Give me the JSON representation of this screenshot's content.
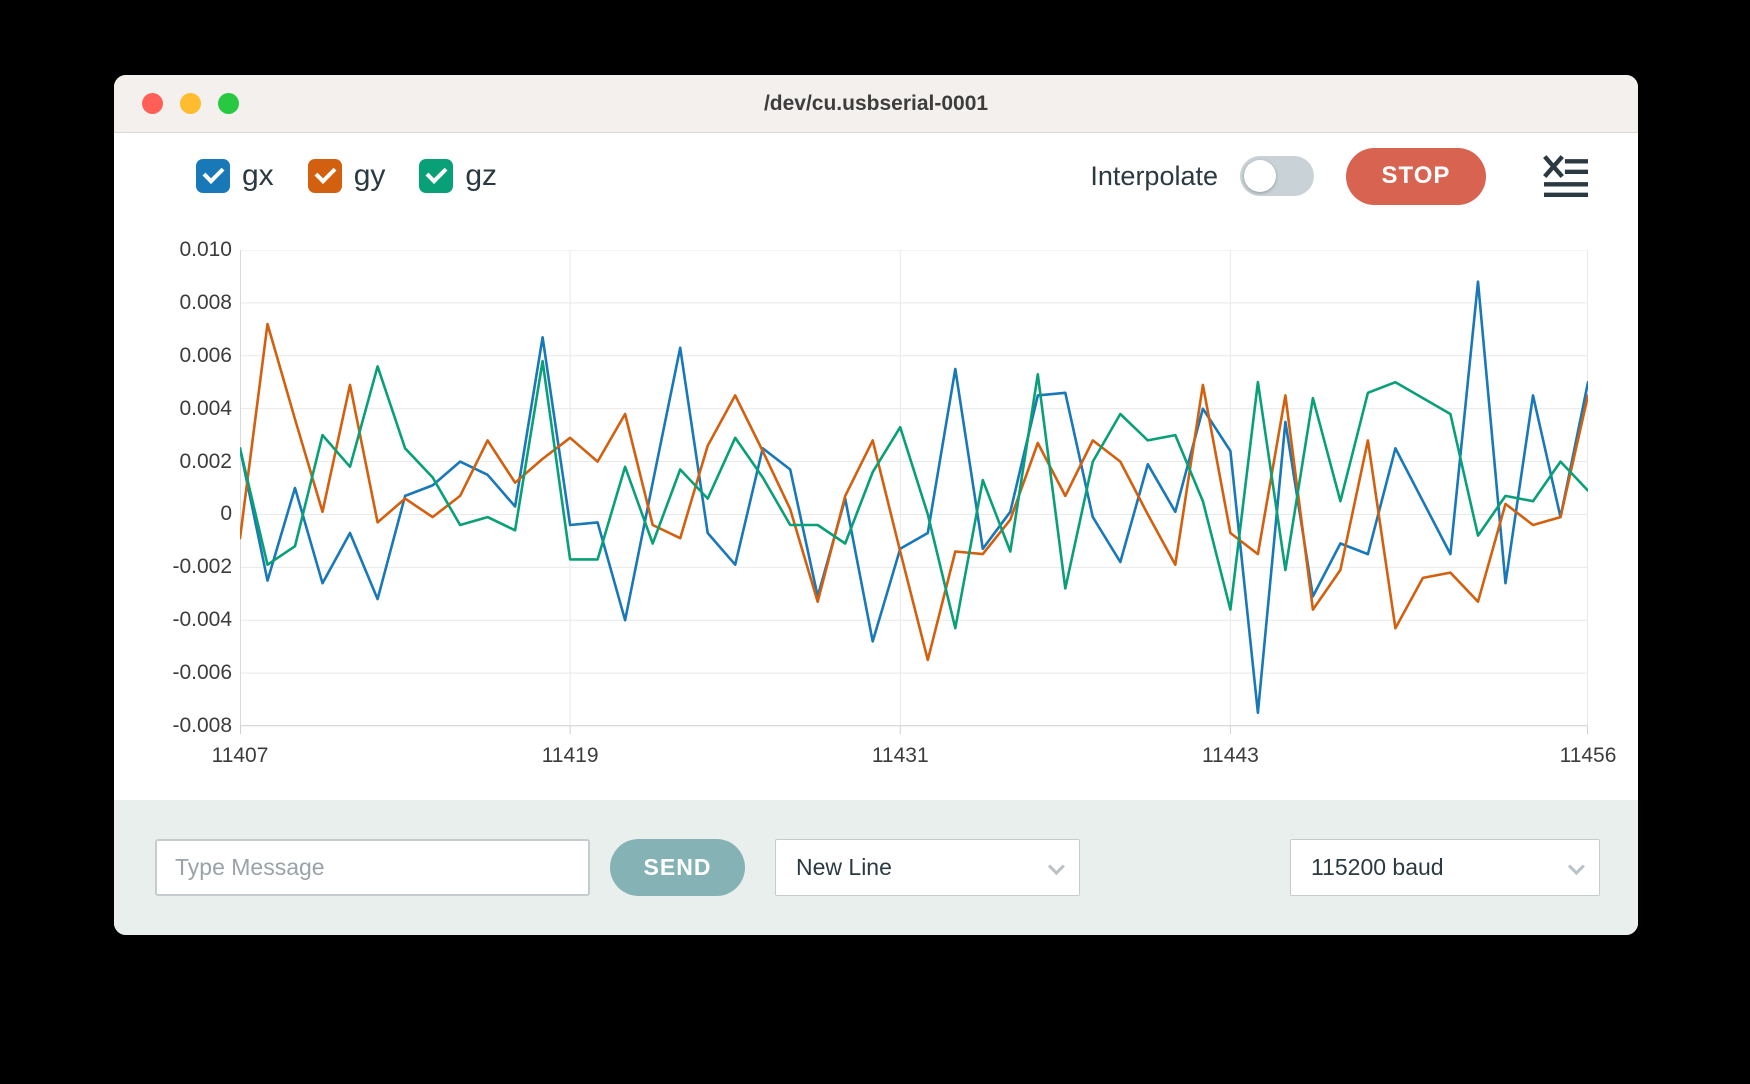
{
  "window": {
    "title": "/dev/cu.usbserial-0001",
    "traffic_lights": {
      "close": "#ff5f57",
      "minimize": "#febc2e",
      "zoom": "#28c840"
    }
  },
  "toolbar": {
    "series_toggles": [
      {
        "label": "gx",
        "color": "#1878b8",
        "checked": true
      },
      {
        "label": "gy",
        "color": "#d2600f",
        "checked": true
      },
      {
        "label": "gz",
        "color": "#0aa077",
        "checked": true
      }
    ],
    "interpolate_label": "Interpolate",
    "interpolate_on": false,
    "stop_label": "STOP",
    "stop_color": "#d96351",
    "clear_icon": "x-with-list-lines",
    "icon_color": "#2b3a42"
  },
  "chart_data": {
    "type": "line",
    "title": "",
    "xlabel": "",
    "ylabel": "",
    "grid": true,
    "legend_position": "top-left-checkboxes",
    "xlim": [
      11407,
      11456
    ],
    "ylim": [
      -0.008,
      0.01
    ],
    "xticks": [
      11407,
      11419,
      11431,
      11443,
      11456
    ],
    "xtick_labels": [
      "11407",
      "11419",
      "11431",
      "11443",
      "11456"
    ],
    "ytick_values": [
      0.01,
      0.008,
      0.006,
      0.004,
      0.002,
      0,
      -0.002,
      -0.004,
      -0.006,
      -0.008
    ],
    "ytick_labels": [
      "0.010",
      "0.008",
      "0.006",
      "0.004",
      "0.002",
      "0",
      "-0.002",
      "-0.004",
      "-0.006",
      "-0.008"
    ],
    "x": [
      11407,
      11408,
      11409,
      11410,
      11411,
      11412,
      11413,
      11414,
      11415,
      11416,
      11417,
      11418,
      11419,
      11420,
      11421,
      11422,
      11423,
      11424,
      11425,
      11426,
      11427,
      11428,
      11429,
      11430,
      11431,
      11432,
      11433,
      11434,
      11435,
      11436,
      11437,
      11438,
      11439,
      11440,
      11441,
      11442,
      11443,
      11444,
      11445,
      11446,
      11447,
      11448,
      11449,
      11450,
      11451,
      11452,
      11453,
      11454,
      11455,
      11456
    ],
    "series": [
      {
        "name": "gx",
        "color": "#1878b8",
        "values": [
          0.0025,
          -0.0025,
          0.001,
          -0.0026,
          -0.0007,
          -0.0032,
          0.0007,
          0.0011,
          0.002,
          0.0015,
          0.0003,
          0.0067,
          -0.0004,
          -0.0003,
          -0.004,
          0.0012,
          0.0063,
          -0.0007,
          -0.0019,
          0.0025,
          0.0017,
          -0.0031,
          0.0006,
          -0.0048,
          -0.0013,
          -0.0007,
          0.0055,
          -0.0013,
          0.0001,
          0.0045,
          0.0046,
          -0.0001,
          -0.0018,
          0.0019,
          0.0001,
          0.004,
          0.0024,
          -0.0075,
          0.0035,
          -0.0031,
          -0.0011,
          -0.0015,
          0.0025,
          0.0005,
          -0.0015,
          0.0088,
          -0.0026,
          0.0045,
          -0.0001,
          0.005
        ]
      },
      {
        "name": "gy",
        "color": "#d2600f",
        "values": [
          -0.0009,
          0.0072,
          0.0036,
          0.0001,
          0.0049,
          -0.0003,
          0.0006,
          -0.0001,
          0.0007,
          0.0028,
          0.0012,
          0.0021,
          0.0029,
          0.002,
          0.0038,
          -0.0004,
          -0.0009,
          0.0026,
          0.0045,
          0.0024,
          0.0002,
          -0.0033,
          0.0007,
          0.0028,
          -0.0014,
          -0.0055,
          -0.0014,
          -0.0015,
          -0.0002,
          0.0027,
          0.0007,
          0.0028,
          0.002,
          0.0,
          -0.0019,
          0.0049,
          -0.0007,
          -0.0015,
          0.0045,
          -0.0036,
          -0.0021,
          0.0028,
          -0.0043,
          -0.0024,
          -0.0022,
          -0.0033,
          0.0004,
          -0.0004,
          -0.0001,
          0.0045
        ]
      },
      {
        "name": "gz",
        "color": "#0aa077",
        "values": [
          0.0025,
          -0.0019,
          -0.0012,
          0.003,
          0.0018,
          0.0056,
          0.0025,
          0.0014,
          -0.0004,
          -0.0001,
          -0.0006,
          0.0058,
          -0.0017,
          -0.0017,
          0.0018,
          -0.0011,
          0.0017,
          0.0006,
          0.0029,
          0.0014,
          -0.0004,
          -0.0004,
          -0.0011,
          0.0016,
          0.0033,
          0.0,
          -0.0043,
          0.0013,
          -0.0014,
          0.0053,
          -0.0028,
          0.002,
          0.0038,
          0.0028,
          0.003,
          0.0005,
          -0.0036,
          0.005,
          -0.0021,
          0.0044,
          0.0005,
          0.0046,
          0.005,
          0.0044,
          0.0038,
          -0.0008,
          0.0007,
          0.0005,
          0.002,
          0.0009
        ]
      }
    ]
  },
  "bottom_bar": {
    "message_placeholder": "Type Message",
    "send_label": "SEND",
    "send_color": "#85b2b4",
    "line_ending_value": "New Line",
    "baud_rate_value": "115200 baud"
  }
}
